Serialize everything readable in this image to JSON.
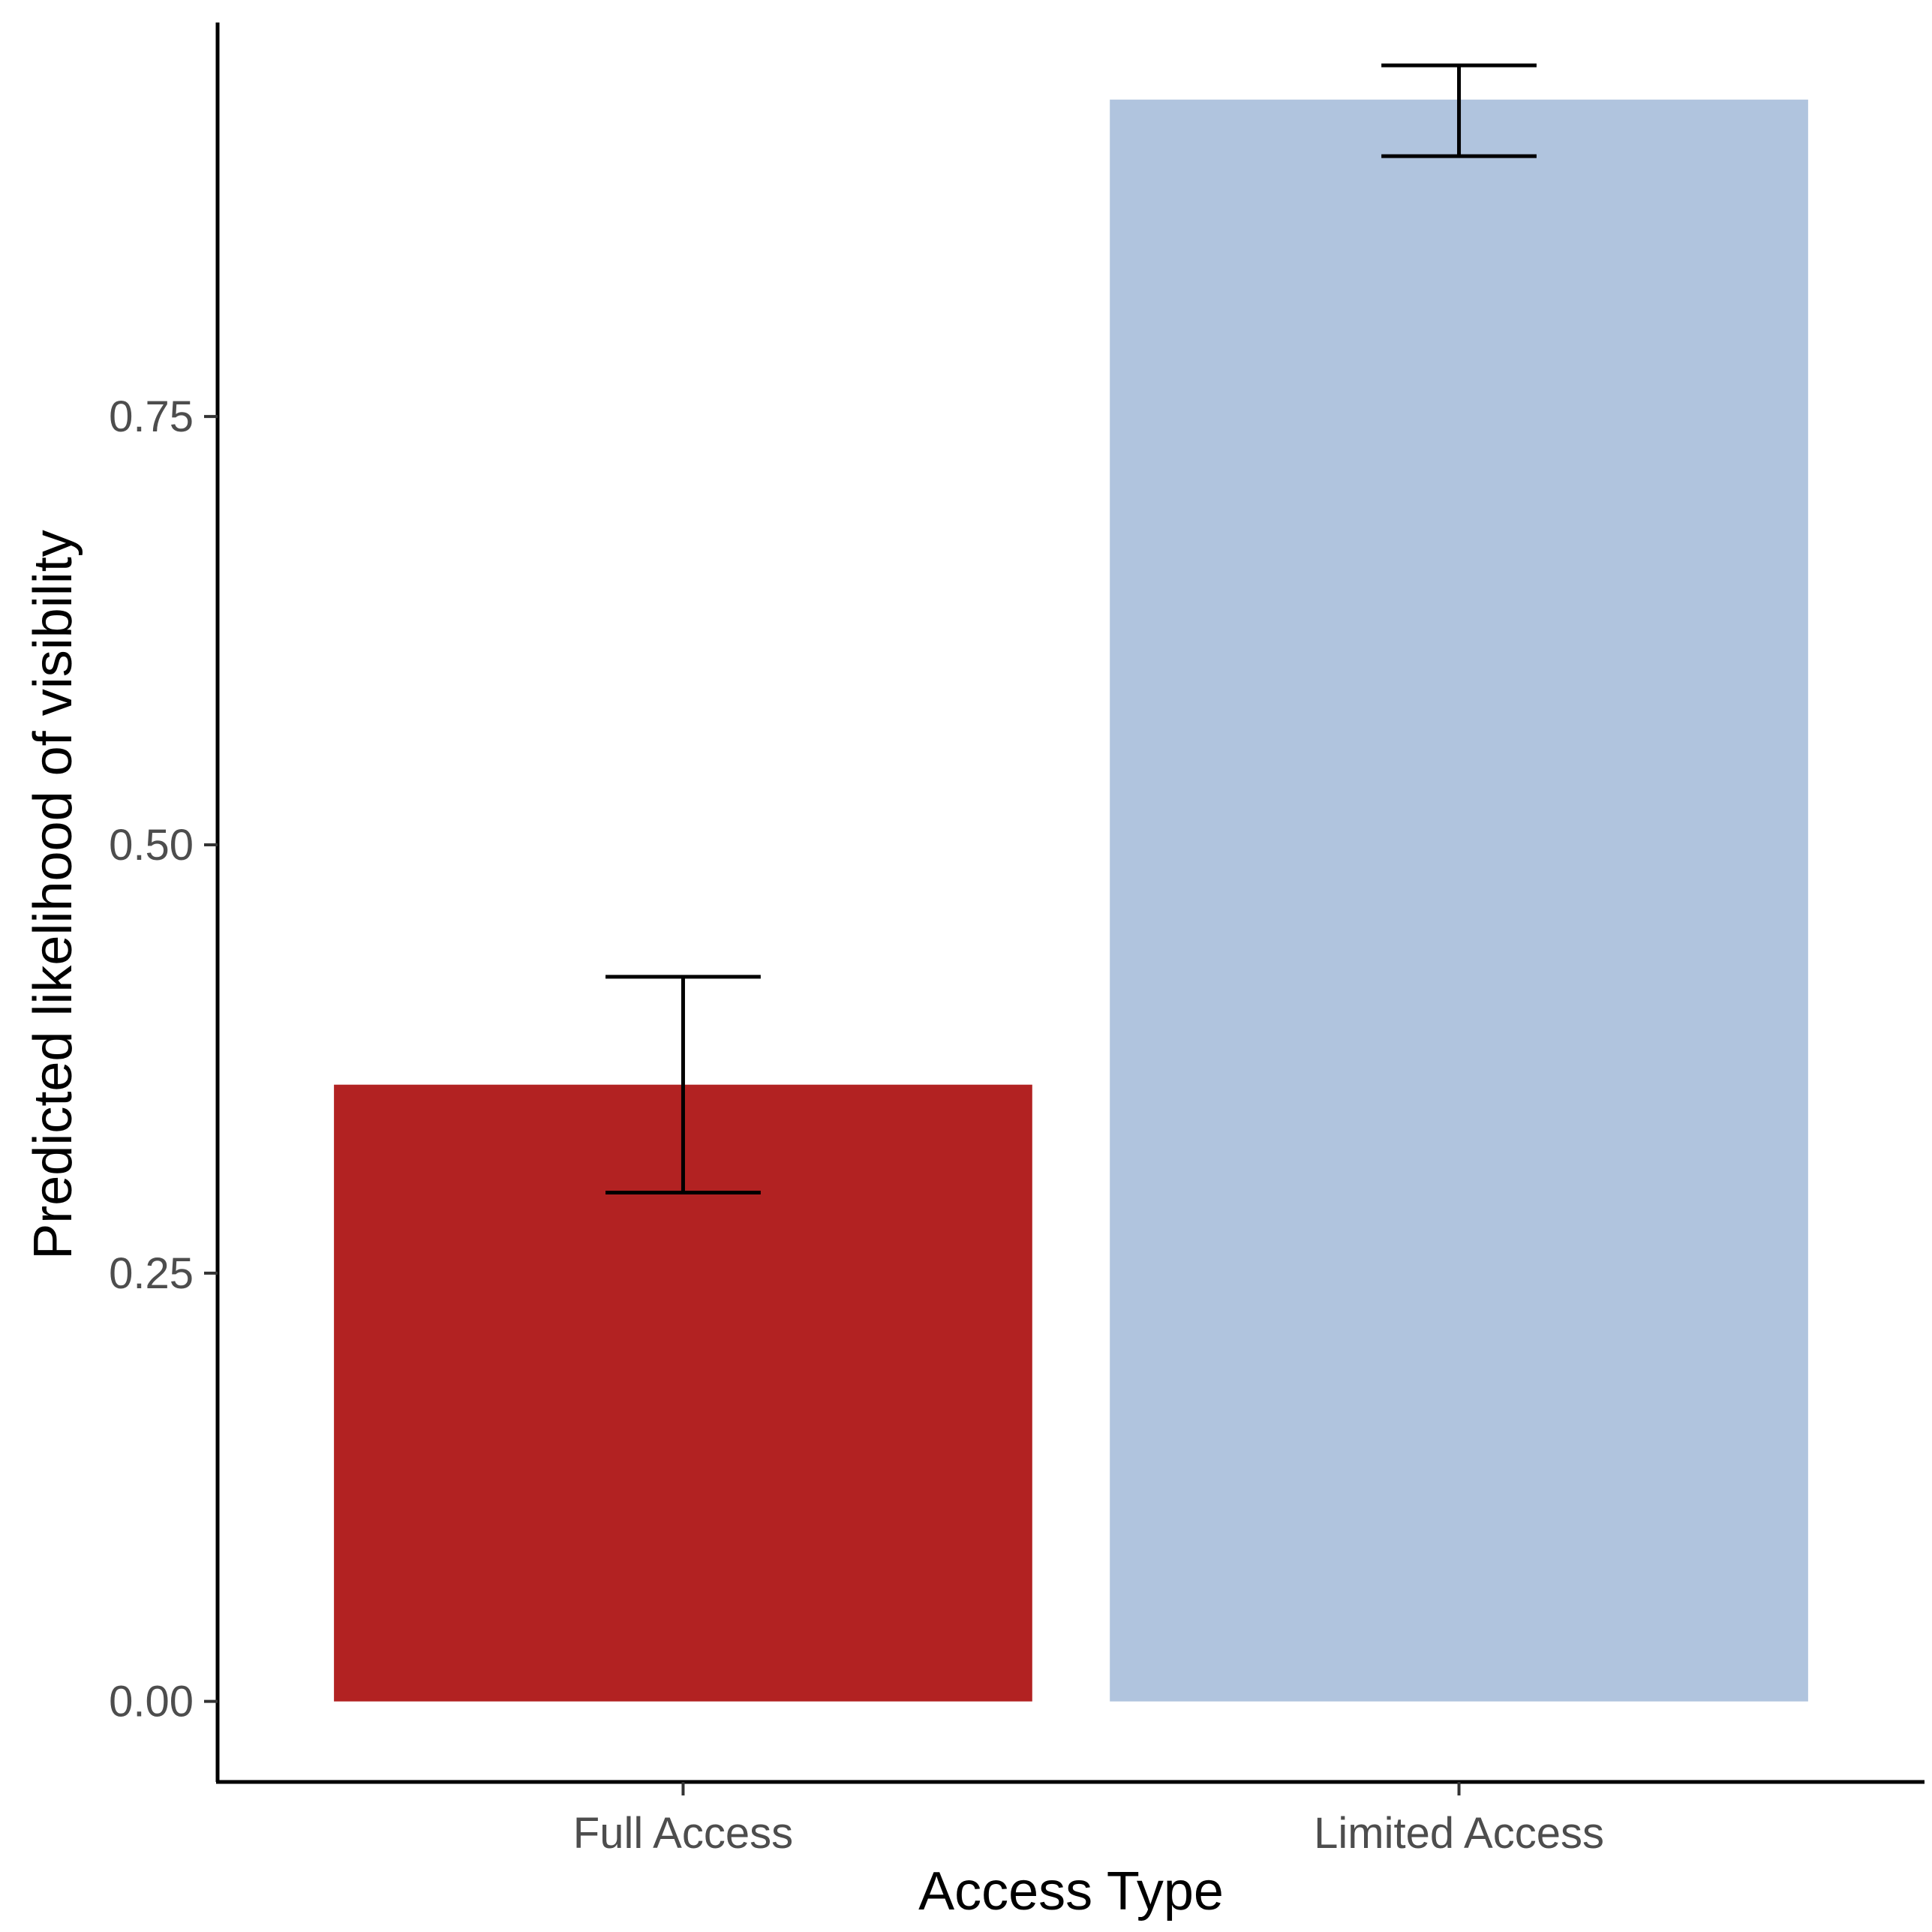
{
  "chart_data": {
    "type": "bar",
    "title": "",
    "xlabel": "Access Type",
    "ylabel": "Predicted likelihood of visibility",
    "categories": [
      "Full Access",
      "Limited Access"
    ],
    "values": [
      0.36,
      0.935
    ],
    "error_low": [
      0.297,
      0.902
    ],
    "error_high": [
      0.423,
      0.955
    ],
    "ylim": [
      -0.047,
      0.98
    ],
    "y_ticks": [
      0.0,
      0.25,
      0.5,
      0.75
    ],
    "y_tick_labels": [
      "0.00",
      "0.25",
      "0.50",
      "0.75"
    ],
    "colors": [
      "#b22222",
      "#b0c4de"
    ],
    "grid": false,
    "legend": "none"
  }
}
